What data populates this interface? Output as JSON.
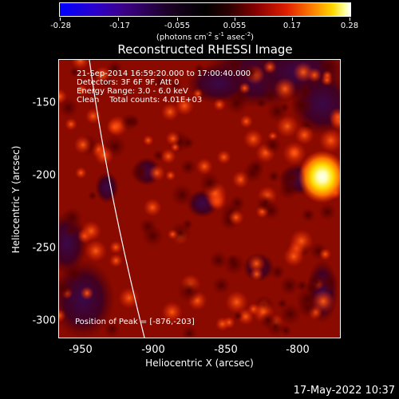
{
  "colorbar": {
    "ticks": [
      "-0.28",
      "-0.17",
      "-0.055",
      "0.055",
      "0.17",
      "0.28"
    ],
    "units": "(photons cm<sup>-2</sup> s<sup>-1</sup> asec<sup>-2</sup>)",
    "range": [
      -0.28,
      0.28
    ]
  },
  "chart_data": {
    "type": "heatmap",
    "title": "Reconstructed RHESSI Image",
    "xlabel": "Heliocentric X (arcsec)",
    "ylabel": "Heliocentric Y (arcsec)",
    "xlim": [
      -965,
      -870
    ],
    "ylim": [
      -313,
      -123
    ],
    "x_ticks": [
      "-950",
      "-900",
      "-850",
      "-800"
    ],
    "x_tick_values": [
      -950,
      -900,
      -850,
      -800
    ],
    "y_ticks": [
      "-150",
      "-200",
      "-250",
      "-300"
    ],
    "y_tick_values": [
      -150,
      -200,
      -250,
      -300
    ],
    "peak": [
      -876,
      -203
    ],
    "secondary_sources": [
      {
        "x": -803,
        "y": -213
      },
      {
        "x": -851,
        "y": -273
      }
    ],
    "info": [
      "21-Sep-2014 16:59:20.000 to 17:00:40.000",
      "Detectors: 3F 6F 9F, Att 0",
      "Energy Range: 3.0 - 6.0 keV",
      "Clean    Total counts: 4.01E+03"
    ],
    "peak_label": "Position of Peak = [-876,-203]"
  },
  "footer": {
    "timestamp": "17-May-2022 10:37"
  }
}
